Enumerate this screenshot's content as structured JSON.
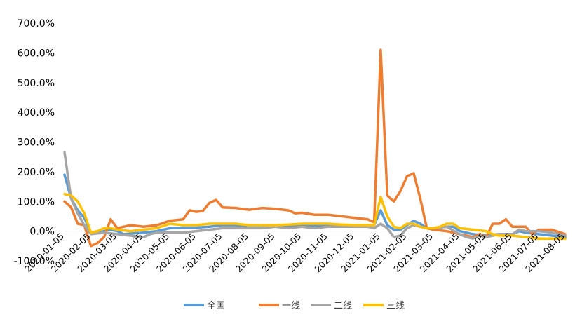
{
  "chart_data": {
    "type": "line",
    "title": "",
    "xlabel": "",
    "ylabel": "",
    "ylim": [
      -100,
      700
    ],
    "y_ticks": [
      "-100.0%",
      "0.0%",
      "100.0%",
      "200.0%",
      "300.0%",
      "400.0%",
      "500.0%",
      "600.0%",
      "700.0%"
    ],
    "x_ticks": [
      "2020-01-05",
      "2020-02-05",
      "2020-03-05",
      "2020-04-05",
      "2020-05-05",
      "2020-06-05",
      "2020-07-05",
      "2020-08-05",
      "2020-09-05",
      "2020-10-05",
      "2020-11-05",
      "2020-12-05",
      "2021-01-05",
      "2021-02-05",
      "2021-03-05",
      "2021-04-05",
      "2021-05-05",
      "2021-06-05",
      "2021-07-05",
      "2021-08-05"
    ],
    "legend_position": "bottom",
    "grid": false,
    "series": [
      {
        "name": "全国",
        "color": "#5b9bd5",
        "points": [
          [
            0,
            190
          ],
          [
            0.25,
            110
          ],
          [
            0.5,
            70
          ],
          [
            0.75,
            45
          ],
          [
            1,
            -5
          ],
          [
            1.25,
            -5
          ],
          [
            1.5,
            0
          ],
          [
            1.75,
            5
          ],
          [
            2,
            0
          ],
          [
            2.25,
            -10
          ],
          [
            2.5,
            -8
          ],
          [
            3,
            -5
          ],
          [
            3.5,
            0
          ],
          [
            4,
            10
          ],
          [
            4.5,
            12
          ],
          [
            5,
            12
          ],
          [
            5.5,
            15
          ],
          [
            6,
            20
          ],
          [
            6.5,
            20
          ],
          [
            7,
            18
          ],
          [
            8,
            18
          ],
          [
            9,
            20
          ],
          [
            10,
            18
          ],
          [
            11,
            18
          ],
          [
            11.6,
            15
          ],
          [
            11.75,
            20
          ],
          [
            12,
            70
          ],
          [
            12.25,
            20
          ],
          [
            12.5,
            5
          ],
          [
            12.75,
            5
          ],
          [
            13,
            20
          ],
          [
            13.25,
            35
          ],
          [
            13.5,
            25
          ],
          [
            13.75,
            10
          ],
          [
            14,
            10
          ],
          [
            14.5,
            15
          ],
          [
            14.75,
            15
          ],
          [
            15,
            0
          ],
          [
            15.5,
            -10
          ],
          [
            16,
            -15
          ],
          [
            16.25,
            -12
          ],
          [
            16.5,
            -10
          ],
          [
            17,
            -10
          ],
          [
            17.25,
            0
          ],
          [
            17.5,
            -5
          ],
          [
            18,
            -10
          ],
          [
            18.5,
            -15
          ],
          [
            19,
            -20
          ]
        ]
      },
      {
        "name": "一线",
        "color": "#ed7d31",
        "points": [
          [
            0,
            100
          ],
          [
            0.25,
            80
          ],
          [
            0.5,
            25
          ],
          [
            0.75,
            20
          ],
          [
            1,
            -50
          ],
          [
            1.25,
            -40
          ],
          [
            1.5,
            -20
          ],
          [
            1.75,
            40
          ],
          [
            2,
            10
          ],
          [
            2.5,
            20
          ],
          [
            3,
            15
          ],
          [
            3.5,
            20
          ],
          [
            4,
            35
          ],
          [
            4.5,
            40
          ],
          [
            4.75,
            70
          ],
          [
            5,
            65
          ],
          [
            5.25,
            68
          ],
          [
            5.5,
            95
          ],
          [
            5.75,
            105
          ],
          [
            6,
            80
          ],
          [
            6.5,
            78
          ],
          [
            7,
            72
          ],
          [
            7.5,
            78
          ],
          [
            8,
            75
          ],
          [
            8.5,
            70
          ],
          [
            8.75,
            60
          ],
          [
            9,
            62
          ],
          [
            9.5,
            55
          ],
          [
            10,
            55
          ],
          [
            10.5,
            50
          ],
          [
            11,
            45
          ],
          [
            11.5,
            40
          ],
          [
            11.75,
            30
          ],
          [
            12,
            610
          ],
          [
            12.25,
            120
          ],
          [
            12.5,
            100
          ],
          [
            12.75,
            135
          ],
          [
            13,
            185
          ],
          [
            13.25,
            195
          ],
          [
            13.5,
            110
          ],
          [
            13.75,
            10
          ],
          [
            14,
            5
          ],
          [
            14.5,
            0
          ],
          [
            15,
            -10
          ],
          [
            15.25,
            -15
          ],
          [
            15.5,
            -20
          ],
          [
            15.75,
            -10
          ],
          [
            16,
            -20
          ],
          [
            16.25,
            25
          ],
          [
            16.5,
            25
          ],
          [
            16.75,
            40
          ],
          [
            17,
            15
          ],
          [
            17.25,
            15
          ],
          [
            17.5,
            15
          ],
          [
            17.75,
            -10
          ],
          [
            18,
            5
          ],
          [
            18.5,
            5
          ],
          [
            19,
            -10
          ]
        ]
      },
      {
        "name": "二线",
        "color": "#a5a5a5",
        "points": [
          [
            0,
            265
          ],
          [
            0.25,
            110
          ],
          [
            0.5,
            60
          ],
          [
            0.75,
            20
          ],
          [
            1,
            -10
          ],
          [
            1.5,
            -5
          ],
          [
            2,
            -10
          ],
          [
            2.5,
            -15
          ],
          [
            3,
            -20
          ],
          [
            3.25,
            -10
          ],
          [
            3.5,
            -5
          ],
          [
            4,
            -5
          ],
          [
            4.5,
            -5
          ],
          [
            5,
            0
          ],
          [
            5.5,
            5
          ],
          [
            6,
            10
          ],
          [
            6.5,
            10
          ],
          [
            7,
            10
          ],
          [
            7.5,
            10
          ],
          [
            8,
            15
          ],
          [
            8.5,
            10
          ],
          [
            9,
            15
          ],
          [
            9.5,
            10
          ],
          [
            10,
            15
          ],
          [
            10.5,
            15
          ],
          [
            11,
            15
          ],
          [
            11.5,
            15
          ],
          [
            11.75,
            10
          ],
          [
            12,
            25
          ],
          [
            12.25,
            10
          ],
          [
            12.5,
            -20
          ],
          [
            12.75,
            -15
          ],
          [
            13,
            10
          ],
          [
            13.25,
            20
          ],
          [
            13.5,
            15
          ],
          [
            13.75,
            10
          ],
          [
            14,
            10
          ],
          [
            14.5,
            15
          ],
          [
            15,
            -10
          ],
          [
            15.25,
            -20
          ],
          [
            15.5,
            -25
          ],
          [
            15.75,
            -15
          ],
          [
            16,
            -20
          ],
          [
            16.25,
            -15
          ],
          [
            16.5,
            -10
          ],
          [
            17,
            -10
          ],
          [
            17.25,
            5
          ],
          [
            17.5,
            0
          ],
          [
            18,
            0
          ],
          [
            18.5,
            -5
          ],
          [
            19,
            -15
          ]
        ]
      },
      {
        "name": "三线",
        "color": "#ffc000",
        "points": [
          [
            0,
            125
          ],
          [
            0.25,
            120
          ],
          [
            0.5,
            100
          ],
          [
            0.75,
            60
          ],
          [
            1,
            -5
          ],
          [
            1.25,
            0
          ],
          [
            1.5,
            10
          ],
          [
            1.75,
            10
          ],
          [
            2,
            5
          ],
          [
            2.5,
            0
          ],
          [
            3,
            5
          ],
          [
            3.5,
            10
          ],
          [
            4,
            25
          ],
          [
            4.5,
            20
          ],
          [
            5,
            20
          ],
          [
            5.5,
            25
          ],
          [
            6,
            25
          ],
          [
            6.5,
            25
          ],
          [
            7,
            20
          ],
          [
            7.5,
            20
          ],
          [
            8,
            20
          ],
          [
            8.5,
            22
          ],
          [
            9,
            25
          ],
          [
            9.5,
            25
          ],
          [
            10,
            25
          ],
          [
            10.5,
            22
          ],
          [
            11,
            20
          ],
          [
            11.5,
            20
          ],
          [
            11.75,
            20
          ],
          [
            12,
            115
          ],
          [
            12.25,
            50
          ],
          [
            12.5,
            15
          ],
          [
            12.75,
            10
          ],
          [
            13,
            25
          ],
          [
            13.25,
            25
          ],
          [
            13.5,
            15
          ],
          [
            13.75,
            10
          ],
          [
            14,
            10
          ],
          [
            14.25,
            15
          ],
          [
            14.5,
            25
          ],
          [
            14.75,
            25
          ],
          [
            15,
            10
          ],
          [
            15.5,
            5
          ],
          [
            16,
            0
          ],
          [
            16.25,
            -10
          ],
          [
            16.5,
            -15
          ],
          [
            17,
            -15
          ],
          [
            17.5,
            -20
          ],
          [
            18,
            -25
          ],
          [
            18.5,
            -25
          ],
          [
            19,
            -25
          ]
        ]
      }
    ]
  }
}
